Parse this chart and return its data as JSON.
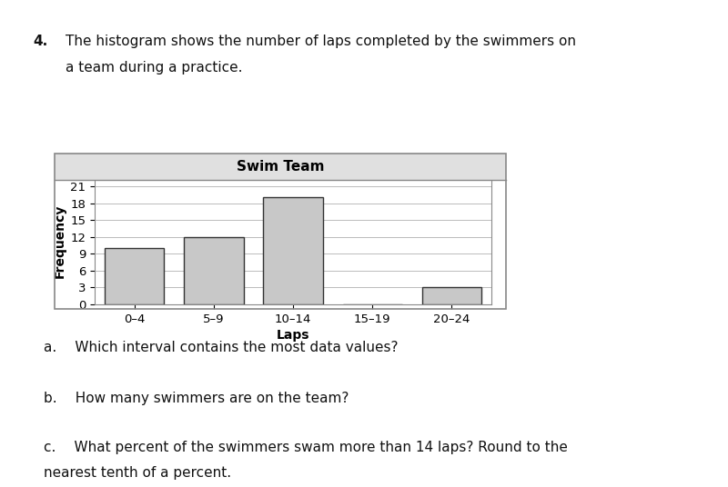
{
  "title": "Swim Team",
  "xlabel": "Laps",
  "ylabel": "Frequency",
  "categories": [
    "0–4",
    "5–9",
    "10–14",
    "15–19",
    "20–24"
  ],
  "values": [
    10,
    12,
    19,
    0,
    3
  ],
  "bar_color": "#c8c8c8",
  "bar_edge_color": "#333333",
  "yticks": [
    0,
    3,
    6,
    9,
    12,
    15,
    18,
    21
  ],
  "ylim": [
    0,
    22.5
  ],
  "title_fontsize": 11,
  "label_fontsize": 10,
  "tick_fontsize": 9.5,
  "figure_background": "#ffffff",
  "plot_background": "#ffffff",
  "header_color": "#e0e0e0",
  "box_edge_color": "#888888",
  "question_number": "4.",
  "question_text_line1": "The histogram shows the number of laps completed by the swimmers on",
  "question_text_line2": "a team during a practice.",
  "qa": "a.  Which interval contains the most data values?",
  "qb": "b.  How many swimmers are on the team?",
  "qc_line1": "c.  What percent of the swimmers swam more than 14 laps? Round to the",
  "qc_line2": "nearest tenth of a percent."
}
